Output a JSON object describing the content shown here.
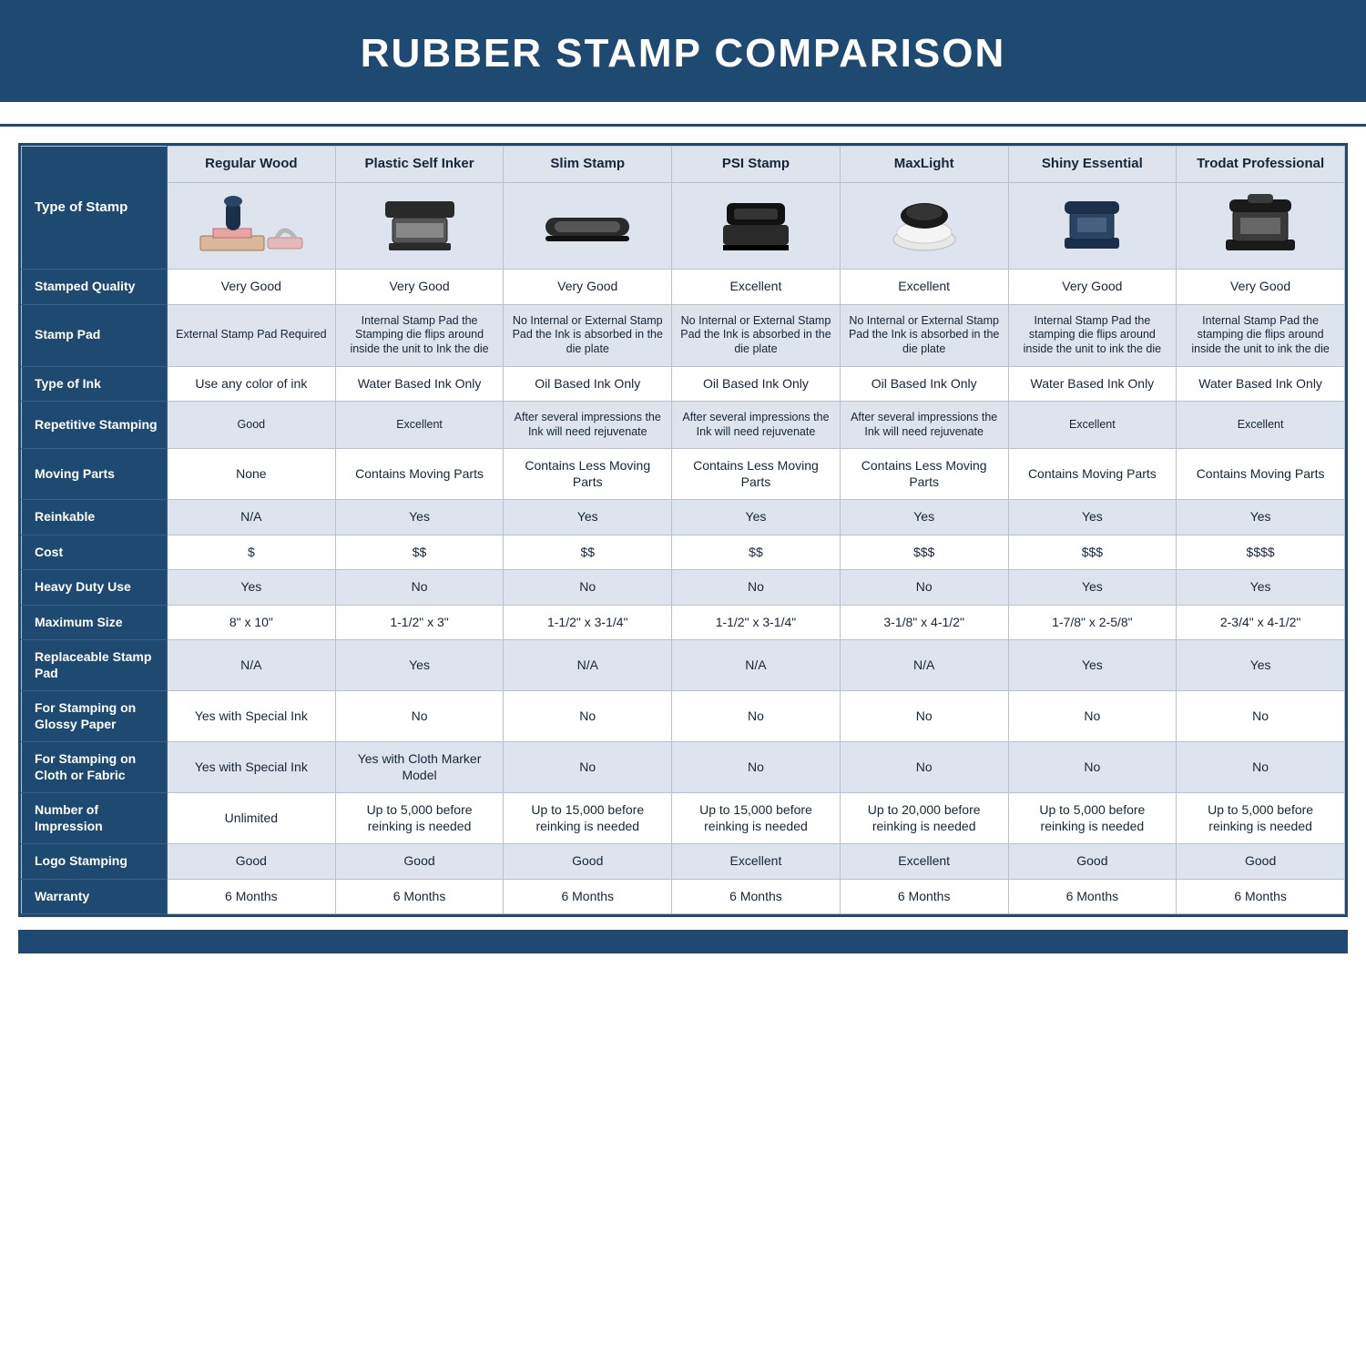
{
  "title": "RUBBER STAMP COMPARISON",
  "colors": {
    "navy": "#1e4a72",
    "alt_row": "#dde4ed",
    "plain_row": "#ffffff",
    "cell_border": "#b8c2cf",
    "title_text": "#ffffff"
  },
  "columns": [
    "Regular Wood",
    "Plastic Self Inker",
    "Slim Stamp",
    "PSI Stamp",
    "MaxLight",
    "Shiny Essential",
    "Trodat Professional"
  ],
  "rows": [
    {
      "key": "type_of_stamp",
      "label": "Type of Stamp",
      "is_image_row": true,
      "alt": true
    },
    {
      "key": "stamped_quality",
      "label": "Stamped Quality",
      "alt": false,
      "cells": [
        "Very Good",
        "Very Good",
        "Very Good",
        "Excellent",
        "Excellent",
        "Very Good",
        "Very Good"
      ]
    },
    {
      "key": "stamp_pad",
      "label": "Stamp Pad",
      "alt": true,
      "small": true,
      "cells": [
        "External Stamp Pad Required",
        "Internal Stamp Pad the Stamping die flips around inside the unit to Ink the die",
        "No Internal or External Stamp Pad the Ink is absorbed in the die plate",
        "No Internal or External Stamp Pad the Ink is absorbed in the die plate",
        "No Internal or External Stamp Pad the Ink is absorbed in the die plate",
        "Internal Stamp Pad the stamping die flips around inside the unit to ink the die",
        "Internal Stamp Pad the stamping die flips around inside the unit to ink the die"
      ]
    },
    {
      "key": "type_of_ink",
      "label": "Type of Ink",
      "alt": false,
      "cells": [
        "Use any color of ink",
        "Water Based Ink Only",
        "Oil Based Ink Only",
        "Oil Based Ink Only",
        "Oil Based Ink Only",
        "Water Based Ink Only",
        "Water Based Ink Only"
      ]
    },
    {
      "key": "repetitive_stamping",
      "label": "Repetitive Stamping",
      "alt": true,
      "small": true,
      "cells": [
        "Good",
        "Excellent",
        "After several impressions the Ink will need rejuvenate",
        "After several impressions the Ink will need rejuvenate",
        "After several impressions the Ink will need rejuvenate",
        "Excellent",
        "Excellent"
      ]
    },
    {
      "key": "moving_parts",
      "label": "Moving Parts",
      "alt": false,
      "cells": [
        "None",
        "Contains Moving Parts",
        "Contains Less Moving Parts",
        "Contains Less Moving Parts",
        "Contains Less Moving Parts",
        "Contains Moving Parts",
        "Contains Moving Parts"
      ]
    },
    {
      "key": "reinkable",
      "label": "Reinkable",
      "alt": true,
      "cells": [
        "N/A",
        "Yes",
        "Yes",
        "Yes",
        "Yes",
        "Yes",
        "Yes"
      ]
    },
    {
      "key": "cost",
      "label": "Cost",
      "alt": false,
      "cells": [
        "$",
        "$$",
        "$$",
        "$$",
        "$$$",
        "$$$",
        "$$$$"
      ]
    },
    {
      "key": "heavy_duty",
      "label": "Heavy Duty Use",
      "alt": true,
      "cells": [
        "Yes",
        "No",
        "No",
        "No",
        "No",
        "Yes",
        "Yes"
      ]
    },
    {
      "key": "max_size",
      "label": "Maximum Size",
      "alt": false,
      "cells": [
        "8\" x 10\"",
        "1-1/2\" x 3\"",
        "1-1/2\" x 3-1/4\"",
        "1-1/2\" x 3-1/4\"",
        "3-1/8\" x 4-1/2\"",
        "1-7/8\" x 2-5/8\"",
        "2-3/4\" x 4-1/2\""
      ]
    },
    {
      "key": "replaceable_pad",
      "label": "Replaceable Stamp Pad",
      "alt": true,
      "cells": [
        "N/A",
        "Yes",
        "N/A",
        "N/A",
        "N/A",
        "Yes",
        "Yes"
      ]
    },
    {
      "key": "glossy",
      "label": "For Stamping on Glossy Paper",
      "alt": false,
      "cells": [
        "Yes with Special Ink",
        "No",
        "No",
        "No",
        "No",
        "No",
        "No"
      ]
    },
    {
      "key": "cloth",
      "label": "For Stamping on Cloth or Fabric",
      "alt": true,
      "cells": [
        "Yes with Special Ink",
        "Yes with Cloth Marker Model",
        "No",
        "No",
        "No",
        "No",
        "No"
      ]
    },
    {
      "key": "impressions",
      "label": "Number of Impression",
      "alt": false,
      "cells": [
        "Unlimited",
        "Up to 5,000 before reinking is needed",
        "Up to 15,000 before reinking is needed",
        "Up to 15,000 before reinking is needed",
        "Up to 20,000 before reinking is needed",
        "Up to 5,000 before reinking is needed",
        "Up to 5,000 before reinking is needed"
      ]
    },
    {
      "key": "logo",
      "label": "Logo Stamping",
      "alt": true,
      "cells": [
        "Good",
        "Good",
        "Good",
        "Excellent",
        "Excellent",
        "Good",
        "Good"
      ]
    },
    {
      "key": "warranty",
      "label": "Warranty",
      "alt": false,
      "cells": [
        "6 Months",
        "6 Months",
        "6 Months",
        "6 Months",
        "6 Months",
        "6 Months",
        "6 Months"
      ]
    }
  ],
  "stamp_icons": [
    "regular-wood",
    "plastic-self-inker",
    "slim-stamp",
    "psi-stamp",
    "maxlight",
    "shiny-essential",
    "trodat-professional"
  ]
}
